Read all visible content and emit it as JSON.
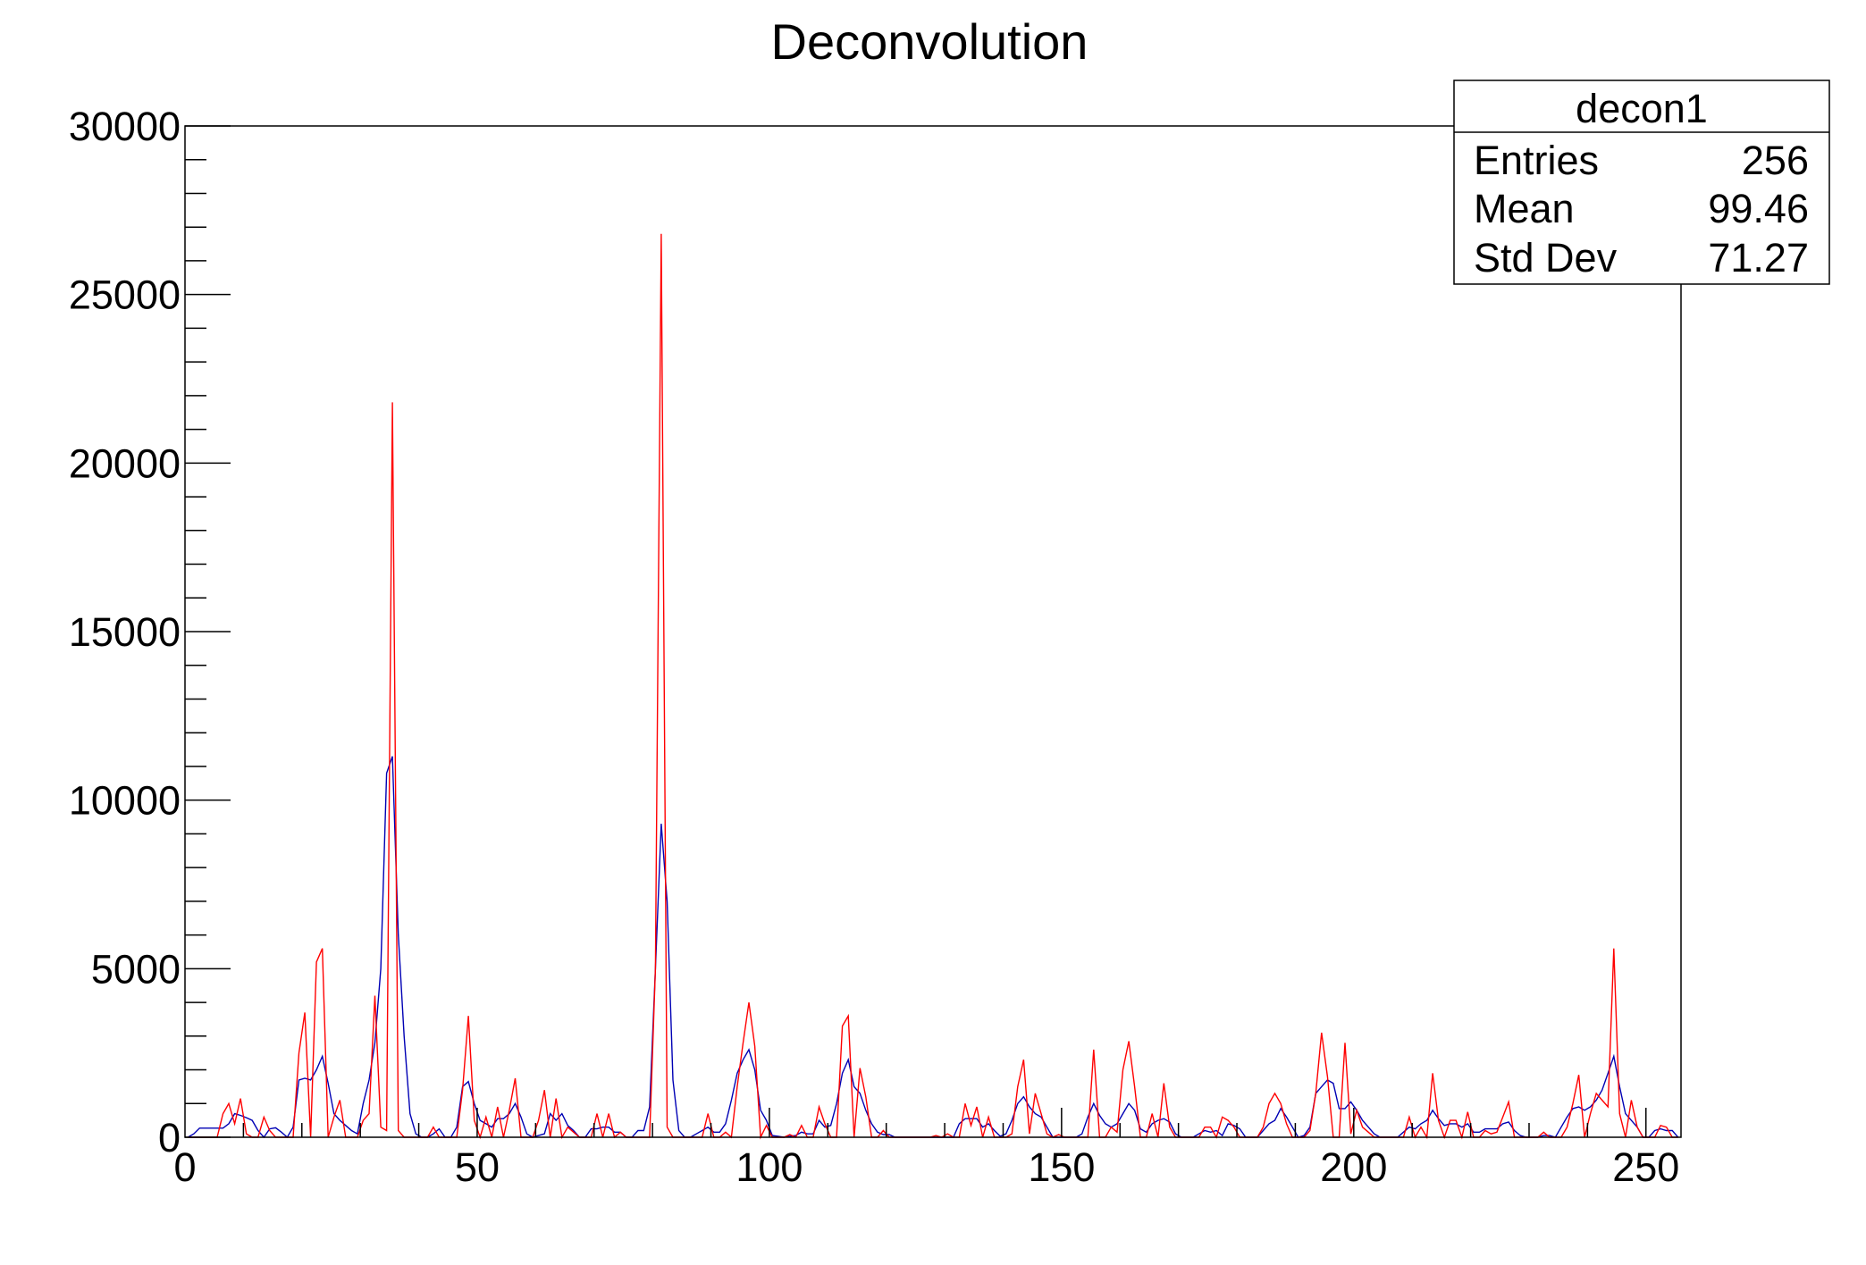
{
  "chart_data": {
    "type": "line",
    "title": "Deconvolution",
    "xlabel": "",
    "ylabel": "",
    "xlim": [
      0,
      256
    ],
    "ylim": [
      0,
      30000
    ],
    "x_ticks": [
      "0",
      "50",
      "100",
      "150",
      "200",
      "250"
    ],
    "y_ticks": [
      "0",
      "5000",
      "10000",
      "15000",
      "20000",
      "25000",
      "30000"
    ],
    "grid": false,
    "bins": 256,
    "series": [
      {
        "color": "#0000b4",
        "values": [
          0,
          100,
          270,
          270,
          270,
          270,
          270,
          400,
          700,
          650,
          580,
          500,
          200,
          0,
          250,
          280,
          150,
          0,
          300,
          1700,
          1750,
          1700,
          2000,
          2400,
          1600,
          700,
          500,
          350,
          200,
          100,
          1000,
          1700,
          2800,
          5000,
          10800,
          11300,
          6000,
          3000,
          700,
          100,
          0,
          0,
          100,
          250,
          0,
          0,
          300,
          1500,
          1650,
          1000,
          500,
          400,
          300,
          550,
          550,
          700,
          1000,
          600,
          100,
          0,
          50,
          100,
          700,
          500,
          700,
          350,
          200,
          0,
          0,
          250,
          250,
          300,
          300,
          150,
          150,
          0,
          0,
          200,
          200,
          900,
          5000,
          9300,
          7000,
          1700,
          200,
          0,
          0,
          100,
          200,
          300,
          150,
          150,
          400,
          1100,
          1900,
          2300,
          2600,
          2000,
          800,
          500,
          50,
          30,
          0,
          30,
          50,
          150,
          100,
          100,
          500,
          300,
          350,
          1000,
          1900,
          2300,
          1500,
          1300,
          800,
          400,
          150,
          80,
          80,
          0,
          0,
          0,
          0,
          0,
          0,
          0,
          0,
          0,
          0,
          0,
          400,
          550,
          550,
          550,
          300,
          400,
          200,
          30,
          100,
          500,
          1000,
          1200,
          900,
          700,
          600,
          300,
          0,
          0,
          0,
          0,
          0,
          100,
          600,
          1000,
          650,
          400,
          300,
          400,
          700,
          1000,
          800,
          250,
          150,
          400,
          500,
          550,
          450,
          100,
          0,
          0,
          0,
          100,
          200,
          150,
          200,
          50,
          400,
          350,
          250,
          0,
          0,
          0,
          200,
          400,
          500,
          850,
          600,
          300,
          0,
          50,
          300,
          1300,
          1500,
          1700,
          1600,
          850,
          850,
          1050,
          800,
          500,
          300,
          100,
          0,
          0,
          0,
          0,
          150,
          300,
          250,
          400,
          500,
          800,
          550,
          350,
          400,
          400,
          300,
          400,
          150,
          150,
          250,
          250,
          250,
          400,
          450,
          200,
          50,
          0,
          0,
          0,
          50,
          50,
          0,
          300,
          600,
          850,
          900,
          800,
          900,
          1100,
          1400,
          1900,
          2400,
          1500,
          700,
          500,
          300,
          0,
          0,
          200,
          250,
          200,
          200,
          0
        ]
      },
      {
        "color": "#ff0000",
        "values": [
          0,
          0,
          0,
          0,
          0,
          0,
          700,
          1000,
          400,
          1150,
          100,
          0,
          0,
          600,
          200,
          0,
          0,
          0,
          0,
          2500,
          3700,
          0,
          5200,
          5600,
          0,
          600,
          1100,
          0,
          0,
          0,
          500,
          700,
          4200,
          300,
          200,
          21800,
          200,
          0,
          0,
          0,
          0,
          0,
          300,
          0,
          0,
          0,
          0,
          1400,
          3600,
          500,
          0,
          600,
          0,
          900,
          0,
          800,
          1750,
          0,
          0,
          0,
          500,
          1400,
          0,
          1150,
          0,
          300,
          150,
          0,
          0,
          0,
          700,
          0,
          700,
          0,
          150,
          0,
          0,
          0,
          0,
          0,
          5000,
          26800,
          300,
          0,
          0,
          0,
          0,
          0,
          0,
          700,
          0,
          0,
          150,
          0,
          1500,
          2800,
          4000,
          2700,
          0,
          350,
          0,
          0,
          0,
          80,
          0,
          350,
          0,
          0,
          900,
          400,
          0,
          0,
          3300,
          3600,
          0,
          2050,
          1200,
          0,
          0,
          200,
          0,
          0,
          0,
          0,
          0,
          0,
          0,
          0,
          50,
          0,
          100,
          0,
          0,
          1000,
          350,
          900,
          0,
          600,
          0,
          0,
          0,
          100,
          1500,
          2300,
          100,
          1300,
          700,
          100,
          0,
          80,
          0,
          0,
          0,
          0,
          0,
          2600,
          0,
          0,
          300,
          150,
          2000,
          2850,
          1500,
          0,
          0,
          700,
          0,
          1600,
          300,
          0,
          0,
          0,
          0,
          0,
          300,
          300,
          0,
          600,
          500,
          300,
          0,
          0,
          0,
          0,
          300,
          1000,
          1300,
          1000,
          400,
          0,
          0,
          0,
          200,
          1300,
          3100,
          1800,
          0,
          0,
          2800,
          100,
          800,
          300,
          150,
          0,
          0,
          0,
          0,
          0,
          0,
          600,
          0,
          300,
          0,
          1900,
          500,
          0,
          500,
          500,
          0,
          750,
          0,
          0,
          200,
          100,
          150,
          600,
          1050,
          0,
          0,
          0,
          0,
          0,
          150,
          0,
          0,
          0,
          300,
          1000,
          1850,
          0,
          700,
          1300,
          1100,
          900,
          5600,
          700,
          0,
          1100,
          300,
          0,
          0,
          0,
          350,
          300,
          0,
          0
        ]
      }
    ]
  },
  "stats_box": {
    "name": "decon1",
    "rows": [
      {
        "label": "Entries",
        "value": "256"
      },
      {
        "label": "Mean",
        "value": "99.46"
      },
      {
        "label": "Std Dev",
        "value": "71.27"
      }
    ]
  }
}
